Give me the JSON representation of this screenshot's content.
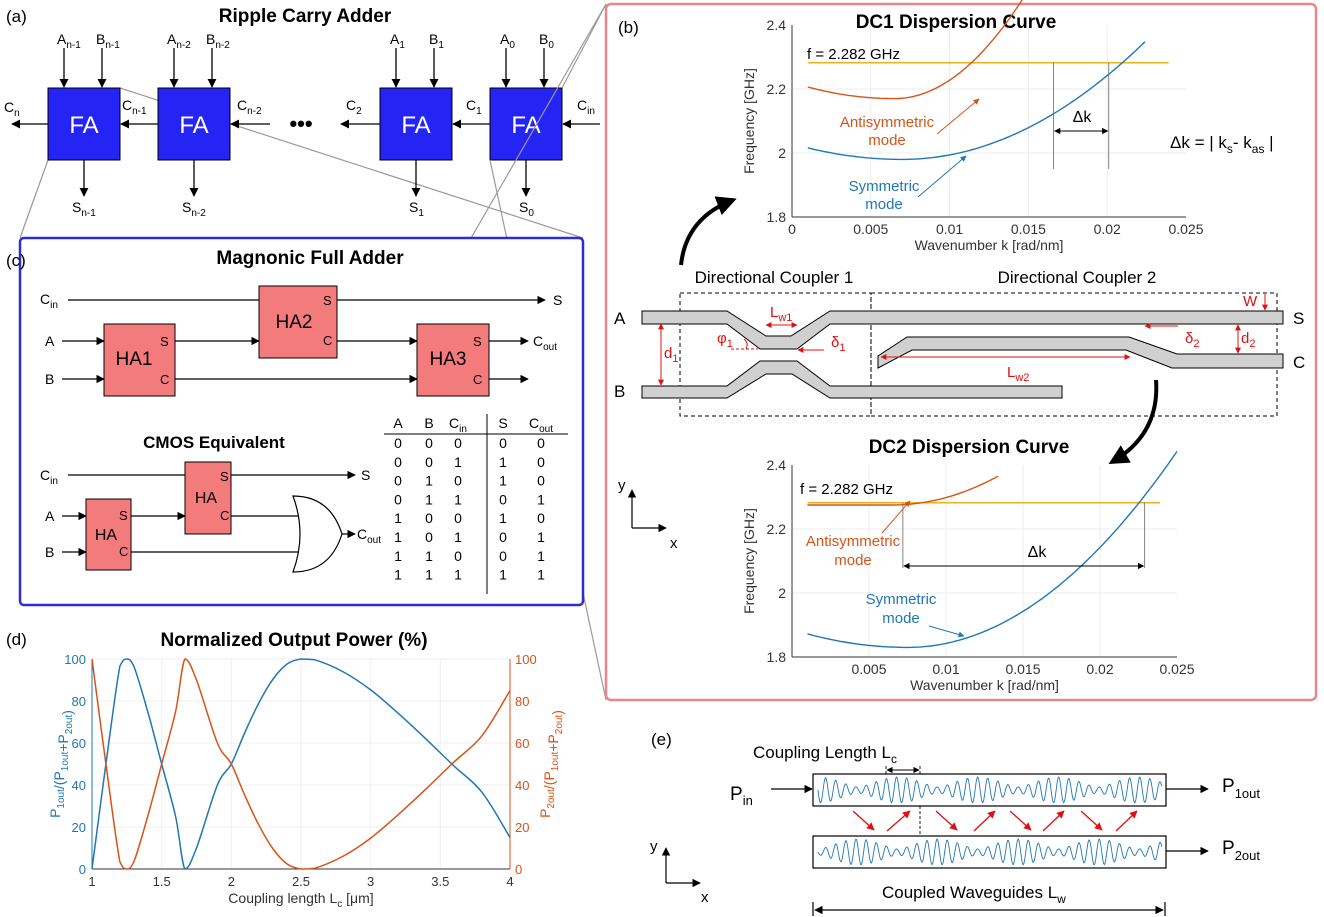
{
  "colors": {
    "fa_fill": "#2424f5",
    "ha_fill": "#f47b7b",
    "panel_b_border": "#e8868a",
    "panel_c_border": "#2d2dd6",
    "blue_series": "#1f77b4",
    "orange_series": "#d95319",
    "yellow_line": "#edb120",
    "red_annot": "#e01010"
  },
  "panel_a": {
    "label": "(a)",
    "title": "Ripple Carry Adder",
    "block_label": "FA",
    "inputs": [
      {
        "a": "A",
        "a_sub": "n-1",
        "b": "B",
        "b_sub": "n-1"
      },
      {
        "a": "A",
        "a_sub": "n-2",
        "b": "B",
        "b_sub": "n-2"
      },
      {
        "a": "A",
        "a_sub": "1",
        "b": "B",
        "b_sub": "1"
      },
      {
        "a": "A",
        "a_sub": "0",
        "b": "B",
        "b_sub": "0"
      }
    ],
    "carries": [
      {
        "main": "C",
        "sub": "n"
      },
      {
        "main": "C",
        "sub": "n-1"
      },
      {
        "main": "C",
        "sub": "n-2"
      },
      {
        "main": "C",
        "sub": "2"
      },
      {
        "main": "C",
        "sub": "1"
      },
      {
        "main": "C",
        "sub": "in"
      }
    ],
    "sums": [
      {
        "main": "S",
        "sub": "n-1"
      },
      {
        "main": "S",
        "sub": "n-2"
      },
      {
        "main": "S",
        "sub": "1"
      },
      {
        "main": "S",
        "sub": "0"
      }
    ],
    "ellipsis": "•••"
  },
  "panel_b": {
    "label": "(b)",
    "dc1": {
      "title": "DC1 Dispersion Curve",
      "freq_label": "f = 2.282 GHz",
      "anti_label": [
        "Antisymmetric",
        "mode"
      ],
      "sym_label": [
        "Symmetric",
        "mode"
      ],
      "dk_label": "Δk",
      "y_ticks": [
        "2.4",
        "2.2",
        "2",
        "1.8"
      ],
      "x_ticks": [
        "0",
        "0.005",
        "0.01",
        "0.015",
        "0.02",
        "0.025"
      ],
      "ylabel": "Frequency [GHz]",
      "xlabel": "Wavenumber k [rad/nm]"
    },
    "dk_formula": {
      "pre": "Δk = | k",
      "s": "s",
      "mid": "- k",
      "as": "as",
      "post": " |"
    },
    "coupler": {
      "dc1_label": "Directional Coupler 1",
      "dc2_label": "Directional Coupler 2",
      "port_a": "A",
      "port_b": "B",
      "port_s": "S",
      "port_c": "C",
      "lw1": {
        "main": "L",
        "sub": "w1"
      },
      "lw2": {
        "main": "L",
        "sub": "w2"
      },
      "phi1": {
        "main": "φ",
        "sub": "1"
      },
      "delta1": {
        "main": "δ",
        "sub": "1"
      },
      "delta2": {
        "main": "δ",
        "sub": "2"
      },
      "d1": {
        "main": "d",
        "sub": "1"
      },
      "d2": {
        "main": "d",
        "sub": "2"
      },
      "w": "W"
    },
    "axes_y": "y",
    "axes_x": "x",
    "dc2": {
      "title": "DC2 Dispersion Curve",
      "freq_label": "f = 2.282 GHz",
      "anti_label": [
        "Antisymmetric",
        "mode"
      ],
      "sym_label": [
        "Symmetric",
        "mode"
      ],
      "dk_label": "Δk",
      "y_ticks": [
        "2.4",
        "2.2",
        "2",
        "1.8"
      ],
      "x_ticks": [
        "0.005",
        "0.01",
        "0.015",
        "0.02",
        "0.025"
      ],
      "ylabel": "Frequency [GHz]",
      "xlabel": "Wavenumber k [rad/nm]"
    }
  },
  "panel_c": {
    "label": "(c)",
    "title": "Magnonic Full Adder",
    "cmos_title": "CMOS Equivalent",
    "ha_blocks": [
      "HA1",
      "HA2",
      "HA3"
    ],
    "ha_plain": "HA",
    "pin_s": "S",
    "pin_c": "C",
    "in_cin": {
      "main": "C",
      "sub": "in"
    },
    "in_a": "A",
    "in_b": "B",
    "out_s": "S",
    "out_cout": {
      "main": "C",
      "sub": "out"
    },
    "truth_table": {
      "headers": [
        {
          "main": "A",
          "sub": ""
        },
        {
          "main": "B",
          "sub": ""
        },
        {
          "main": "C",
          "sub": "in"
        },
        {
          "main": "S",
          "sub": ""
        },
        {
          "main": "C",
          "sub": "out"
        }
      ],
      "rows": [
        [
          "0",
          "0",
          "0",
          "0",
          "0"
        ],
        [
          "0",
          "0",
          "1",
          "1",
          "0"
        ],
        [
          "0",
          "1",
          "0",
          "1",
          "0"
        ],
        [
          "0",
          "1",
          "1",
          "0",
          "1"
        ],
        [
          "1",
          "0",
          "0",
          "1",
          "0"
        ],
        [
          "1",
          "0",
          "1",
          "0",
          "1"
        ],
        [
          "1",
          "1",
          "0",
          "0",
          "1"
        ],
        [
          "1",
          "1",
          "1",
          "1",
          "1"
        ]
      ]
    }
  },
  "panel_d": {
    "label": "(d)",
    "chart_data": {
      "type": "line",
      "title": "Normalized Output Power (%)",
      "xlabel": "Coupling length L_c [μm]",
      "ylabel_left": "P_1out/(P_1out+P_2out)",
      "ylabel_right": "P_2out/(P_1out+P_2out)",
      "xlim": [
        1,
        4
      ],
      "ylim": [
        0,
        100
      ],
      "x_ticks": [
        "1",
        "1.5",
        "2",
        "2.5",
        "3",
        "3.5",
        "4"
      ],
      "y_ticks_left": [
        "0",
        "20",
        "40",
        "60",
        "80",
        "100"
      ],
      "y_ticks_right": [
        "0",
        "20",
        "40",
        "60",
        "80",
        "100"
      ],
      "series": [
        {
          "x": [
            1.0,
            1.1,
            1.2,
            1.25,
            1.3,
            1.4,
            1.5,
            1.6,
            1.667,
            1.75,
            1.9,
            2.0,
            2.1,
            2.2,
            2.3,
            2.4,
            2.5,
            2.6,
            2.8,
            3.0,
            3.2,
            3.4,
            3.6,
            3.8,
            4.0
          ],
          "y": [
            0,
            50,
            96.6,
            100,
            96.6,
            75,
            50,
            25,
            0,
            10,
            40,
            50,
            65.5,
            79.4,
            90.5,
            97.6,
            100,
            99.6,
            94.0,
            85.3,
            74.0,
            61.7,
            48.9,
            36.5,
            15
          ]
        },
        {
          "x": [
            1.0,
            1.1,
            1.2,
            1.25,
            1.3,
            1.4,
            1.5,
            1.6,
            1.667,
            1.75,
            1.9,
            2.0,
            2.1,
            2.2,
            2.3,
            2.4,
            2.5,
            2.6,
            2.8,
            3.0,
            3.2,
            3.4,
            3.6,
            3.8,
            4.0
          ],
          "y": [
            100,
            50,
            3.4,
            0,
            3.4,
            25,
            50,
            75,
            100,
            90,
            60,
            50,
            34.5,
            20.6,
            9.5,
            2.4,
            0,
            0.4,
            6.0,
            14.7,
            26.0,
            38.3,
            51.1,
            63.5,
            85
          ]
        }
      ]
    }
  },
  "panel_e": {
    "label": "(e)",
    "coupling_length": {
      "main": "Coupling Length L",
      "sub": "c"
    },
    "p_in": {
      "main": "P",
      "sub": "in"
    },
    "p1out": {
      "main": "P",
      "sub": "1out"
    },
    "p2out": {
      "main": "P",
      "sub": "2out"
    },
    "coupled_label": {
      "main": "Coupled Waveguides L",
      "sub": "w"
    },
    "axes_y": "y",
    "axes_x": "x"
  }
}
